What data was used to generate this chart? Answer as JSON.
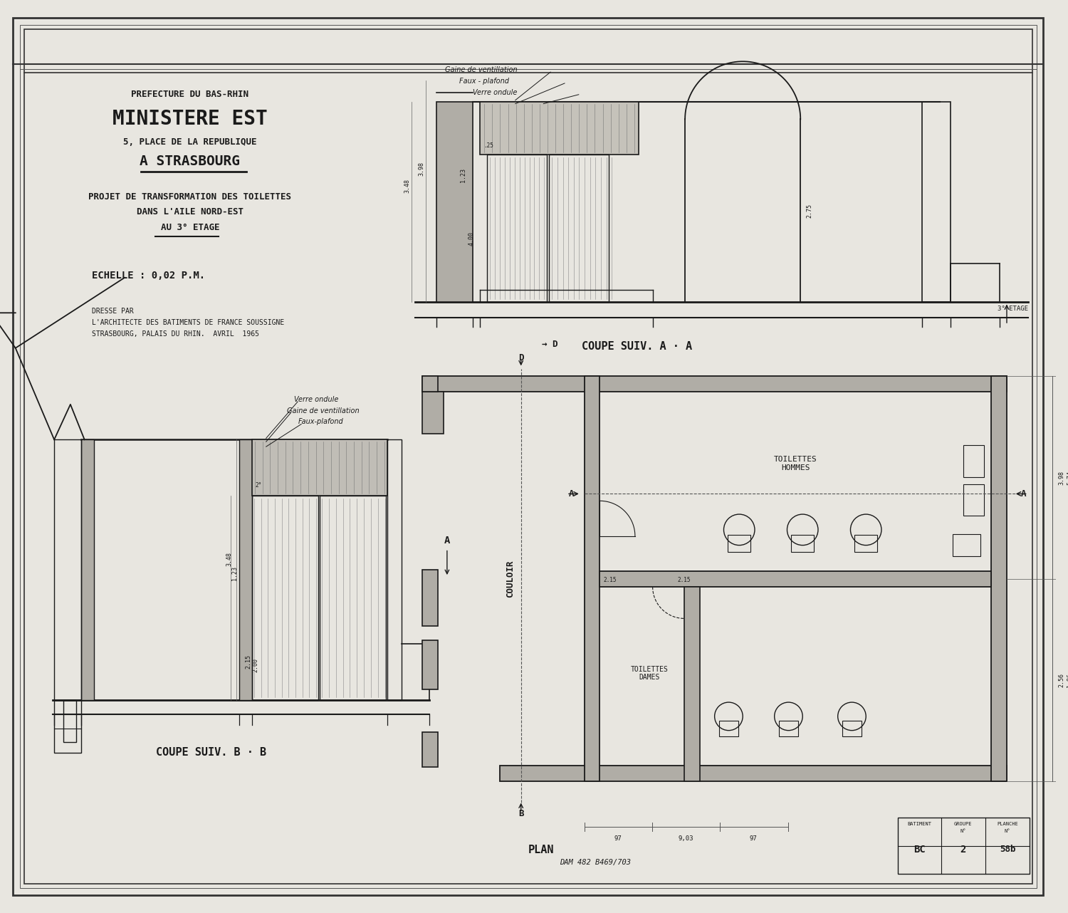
{
  "bg_color": "#e8e6e0",
  "line_color": "#1a1a1a",
  "title_line1": "PREFECTURE DU BAS-RHIN",
  "title_line2": "MINISTERE EST",
  "title_line3": "5, PLACE DE LA REPUBLIQUE",
  "title_line4": "A STRASBOURG",
  "title_line5": "PROJET DE TRANSFORMATION DES TOILETTES",
  "title_line6": "DANS L'AILE NORD-EST",
  "title_line7": "AU 3° ETAGE",
  "echelle": "ECHELLE : 0,02 P.M.",
  "dresse_line1": "DRESSE PAR",
  "dresse_line2": "L'ARCHITECTE DES BATIMENTS DE FRANCE SOUSSIGNE",
  "dresse_line3": "STRASBOURG, PALAIS DU RHIN.  AVRIL  1965",
  "coupe_aa": "COUPE SUIV. A · A",
  "coupe_bb": "COUPE SUIV. B · B",
  "plan_label": "PLAN",
  "ref_label": "DAM 482 B469/703",
  "batiment_label": "BATIMENT",
  "groupe_label": "GROUPE",
  "planche_label": "PLANCHE",
  "no_label": "N°",
  "section": "BC",
  "planche": "58b",
  "num": "2",
  "etage_label": "3° ETAGE",
  "couloir_label": "COULOIR",
  "toilettes_hommes": "TOILETTES\nHOMMES",
  "toilettes_dames": "TOILETTES\nDAMES",
  "gaine_ventilation_aa": "Gaine de ventillation",
  "faux_plafond_aa": "Faux - plafond",
  "verre_ondule_aa": "Verre ondule",
  "verre_ondule_bb": "Verre ondule",
  "gaine_ventilation_bb": "Gaine de ventillation",
  "faux_plafond_bb": "Faux-plafond"
}
